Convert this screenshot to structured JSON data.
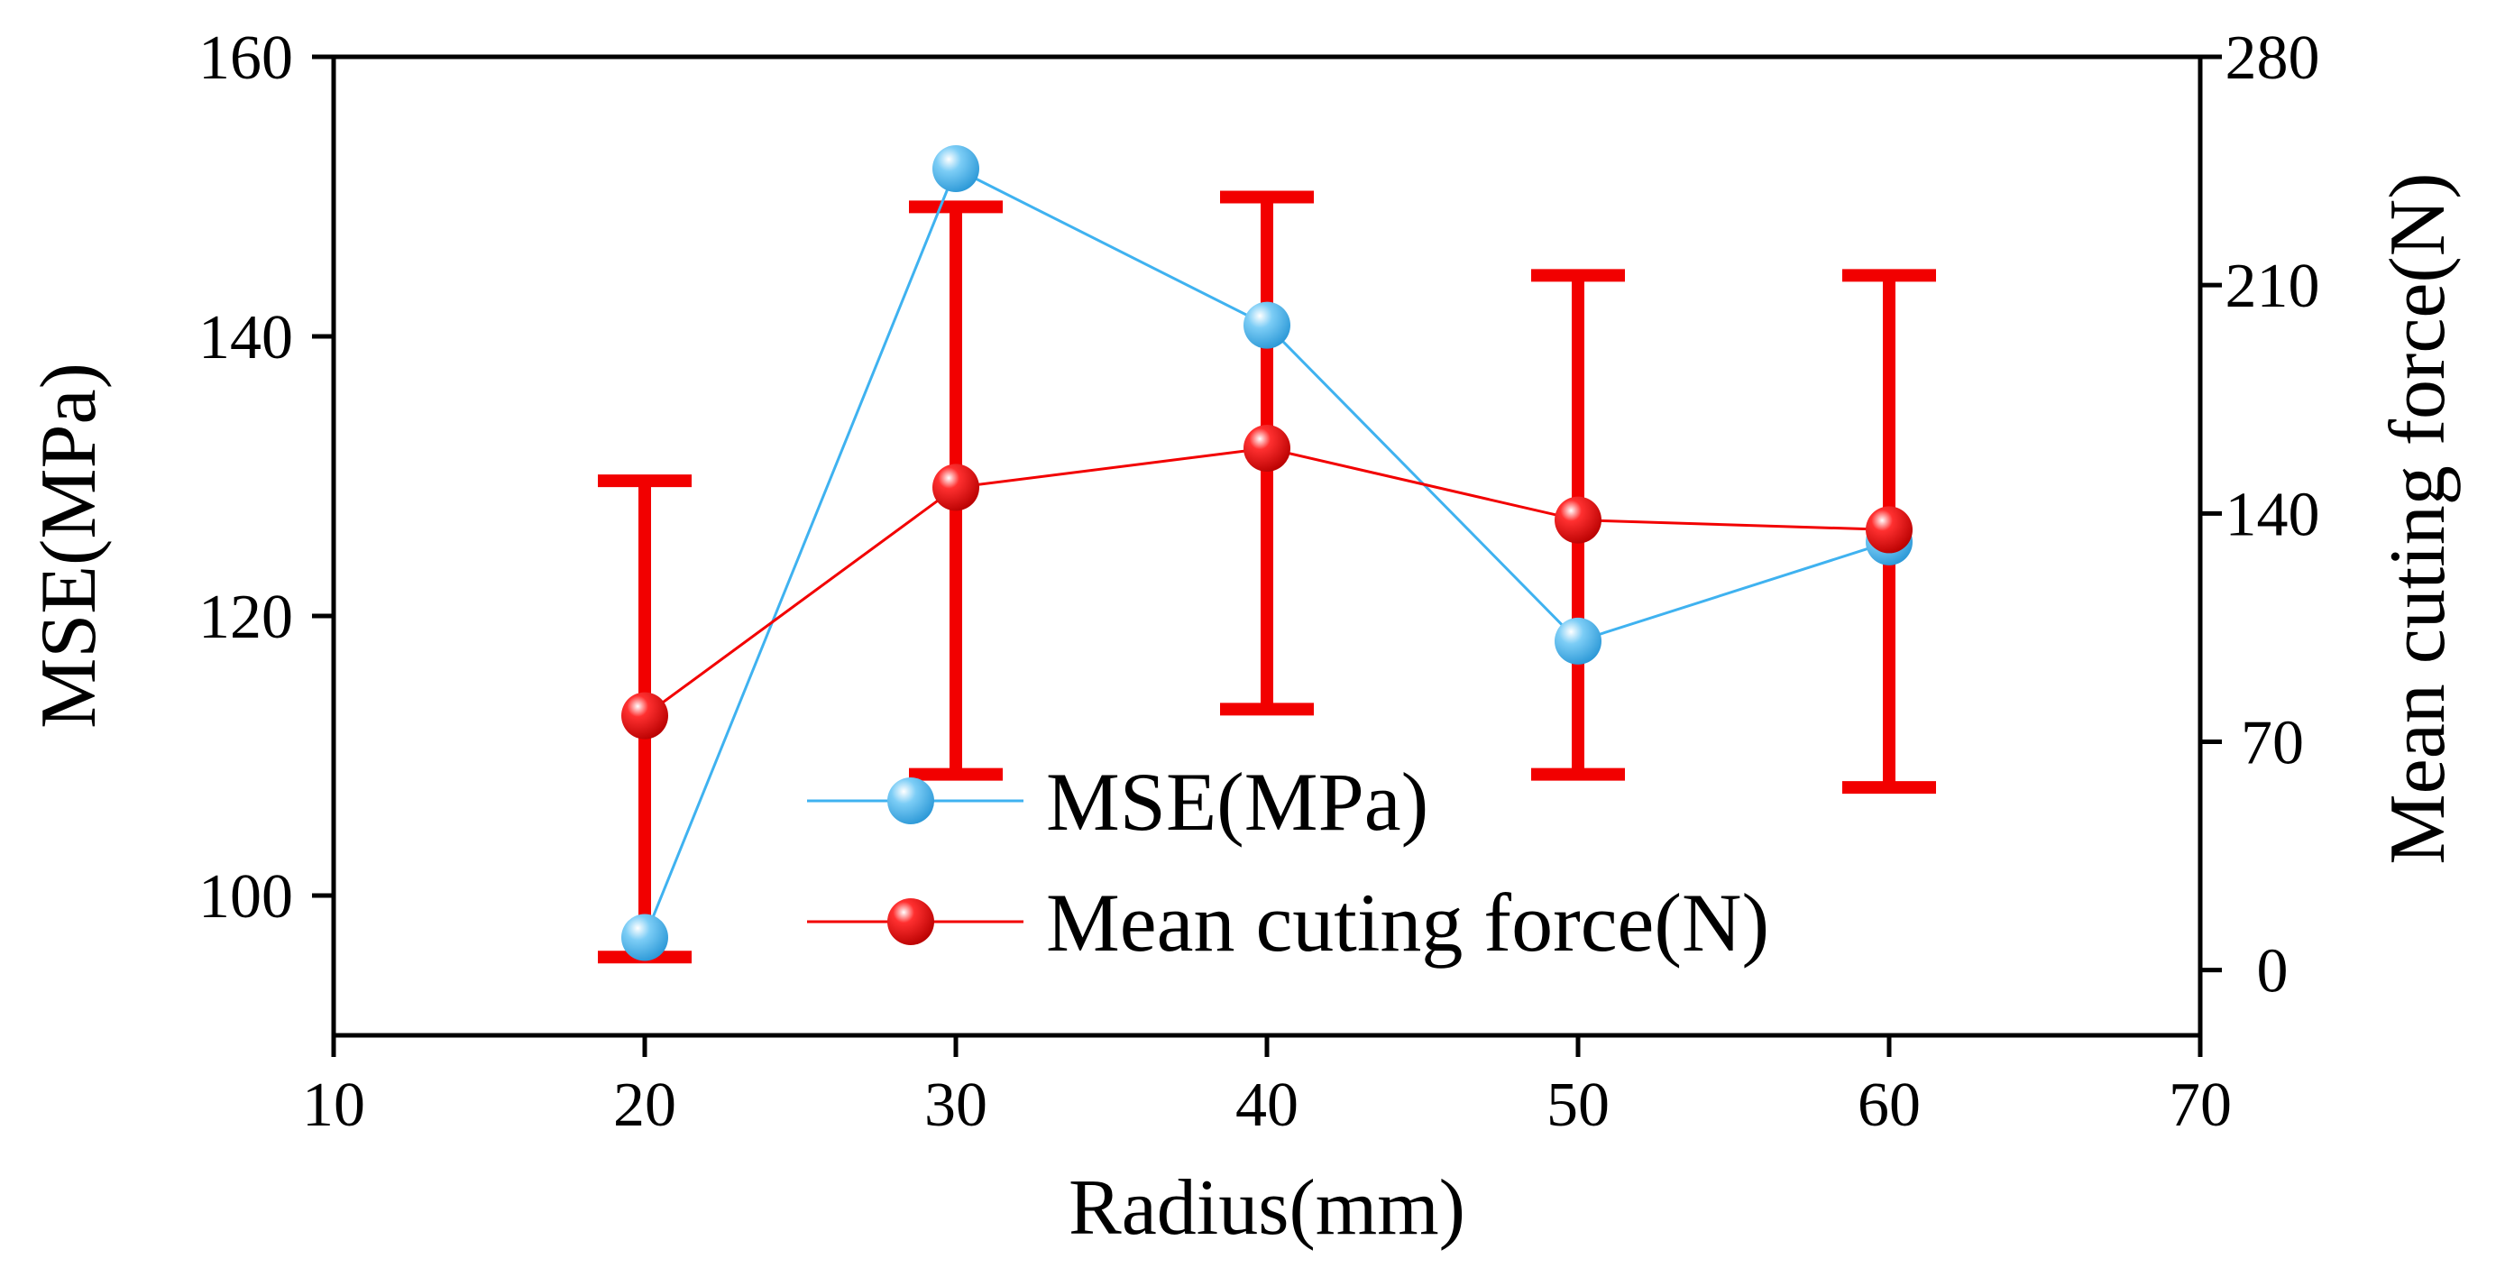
{
  "chart_data": {
    "type": "line",
    "xlabel": "Radius(mm)",
    "ylabel_left": "MSE(MPa)",
    "ylabel_right": "Mean cuting force(N)",
    "x_range": [
      10,
      70
    ],
    "x_ticks": [
      10,
      20,
      30,
      40,
      50,
      60,
      70
    ],
    "y_left_range": [
      90,
      160
    ],
    "y_left_ticks": [
      100,
      120,
      140,
      160
    ],
    "y_right_range": [
      -20,
      280
    ],
    "y_right_ticks": [
      0,
      70,
      140,
      210,
      280
    ],
    "x": [
      20,
      30,
      40,
      50,
      60
    ],
    "series": [
      {
        "name": "MSE(MPa)",
        "axis": "left",
        "color": "#3FB2F0",
        "values": [
          97.0,
          152.0,
          140.8,
          118.2,
          125.3
        ]
      },
      {
        "name": "Mean cuting force(N)",
        "axis": "right",
        "color": "#F20000",
        "values": [
          78,
          148,
          160,
          138,
          135
        ],
        "error_low": [
          4,
          60,
          80,
          60,
          56
        ],
        "error_high": [
          150,
          234,
          237,
          213,
          213
        ]
      }
    ],
    "legend": {
      "position": "bottom-center",
      "entries": [
        "MSE(MPa)",
        "Mean cuting force(N)"
      ]
    }
  }
}
